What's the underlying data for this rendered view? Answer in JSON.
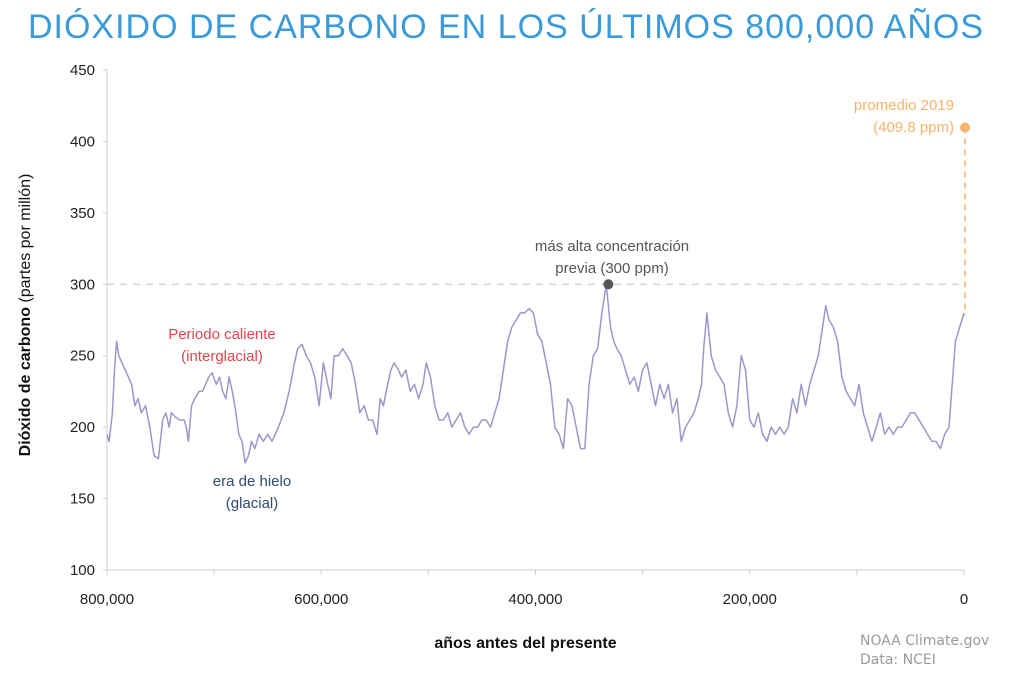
{
  "title": "DIÓXIDO DE CARBONO EN LOS ÚLTIMOS 800,000 AÑOS",
  "credit": {
    "line1": "NOAA Climate.gov",
    "line2": "Data: NCEI"
  },
  "colors": {
    "title": "#3b9ad9",
    "series": "#9a98cb",
    "warm": "#e0444e",
    "glacial": "#2f4a74",
    "highlight": "#555555",
    "current": "#f5b46b",
    "reference_line": "#cccccc"
  },
  "chart_data": {
    "type": "line",
    "title": "DIÓXIDO DE CARBONO EN LOS ÚLTIMOS 800,000 AÑOS",
    "xlabel": "años antes del presente",
    "ylabel": {
      "bold": "Dióxido de carbono",
      "normal": "(partes por millón)"
    },
    "xlim": [
      800000,
      0
    ],
    "ylim": [
      100,
      450
    ],
    "x_ticks": [
      {
        "value": 800000,
        "label": "800,000"
      },
      {
        "value": 600000,
        "label": "600,000"
      },
      {
        "value": 400000,
        "label": "400,000"
      },
      {
        "value": 200000,
        "label": "200,000"
      },
      {
        "value": 0,
        "label": "0"
      }
    ],
    "y_ticks": [
      100,
      150,
      200,
      250,
      300,
      350,
      400,
      450
    ],
    "grid": false,
    "reference_line": {
      "y": 300
    },
    "series": [
      {
        "x": [
          800000,
          798000,
          795000,
          793000,
          791000,
          789000,
          786000,
          783000,
          780000,
          777000,
          774000,
          771000,
          768000,
          764000,
          760000,
          756000,
          752000,
          748000,
          745000,
          742000,
          740000,
          736000,
          732000,
          728000,
          726000,
          724000,
          721000,
          718000,
          714000,
          711000,
          708000,
          705000,
          702000,
          698000,
          695000,
          692000,
          689000,
          686000,
          683000,
          680000,
          677000,
          674000,
          671000,
          668000,
          665000,
          662000,
          658000,
          654000,
          650000,
          646000,
          640000,
          635000,
          630000,
          625000,
          622000,
          618000,
          614000,
          610000,
          606000,
          602000,
          598000,
          594000,
          591000,
          588000,
          584000,
          580000,
          576000,
          572000,
          568000,
          564000,
          560000,
          556000,
          552000,
          548000,
          545000,
          542000,
          538000,
          535000,
          532000,
          528000,
          525000,
          521000,
          517000,
          513000,
          509000,
          505000,
          502000,
          498000,
          494000,
          490000,
          486000,
          482000,
          478000,
          474000,
          470000,
          466000,
          462000,
          458000,
          454000,
          450000,
          446000,
          442000,
          438000,
          434000,
          430000,
          426000,
          422000,
          418000,
          414000,
          410000,
          406000,
          402000,
          398000,
          394000,
          390000,
          386000,
          382000,
          378000,
          374000,
          370000,
          366000,
          362000,
          358000,
          354000,
          350000,
          346000,
          342000,
          338000,
          334000,
          330000,
          327000,
          324000,
          320000,
          316000,
          312000,
          308000,
          304000,
          300000,
          296000,
          292000,
          288000,
          284000,
          280000,
          276000,
          272000,
          268000,
          264000,
          260000,
          256000,
          252000,
          248000,
          245000,
          243000,
          240000,
          236000,
          232000,
          228000,
          224000,
          220000,
          216000,
          212000,
          208000,
          204000,
          200000,
          196000,
          192000,
          188000,
          184000,
          180000,
          176000,
          172000,
          168000,
          164000,
          160000,
          156000,
          152000,
          148000,
          144000,
          140000,
          136000,
          132000,
          129000,
          126000,
          122000,
          118000,
          114000,
          110000,
          106000,
          102000,
          98000,
          94000,
          90000,
          86000,
          82000,
          78000,
          74000,
          70000,
          66000,
          62000,
          58000,
          54000,
          50000,
          46000,
          42000,
          38000,
          34000,
          30000,
          26000,
          22000,
          18000,
          14000,
          12000,
          10000,
          8000,
          6000,
          4000,
          2000,
          0
        ],
        "values": [
          195,
          190,
          210,
          240,
          260,
          250,
          245,
          240,
          235,
          230,
          215,
          220,
          210,
          215,
          200,
          180,
          178,
          205,
          210,
          200,
          210,
          207,
          205,
          205,
          200,
          190,
          215,
          220,
          225,
          225,
          230,
          235,
          238,
          230,
          235,
          225,
          220,
          235,
          225,
          212,
          195,
          190,
          175,
          180,
          190,
          185,
          195,
          190,
          195,
          190,
          200,
          210,
          225,
          245,
          255,
          258,
          250,
          245,
          235,
          215,
          245,
          230,
          220,
          250,
          250,
          255,
          250,
          245,
          230,
          210,
          215,
          205,
          205,
          195,
          220,
          215,
          230,
          240,
          245,
          240,
          235,
          240,
          225,
          230,
          220,
          230,
          245,
          235,
          215,
          205,
          205,
          210,
          200,
          205,
          210,
          200,
          195,
          200,
          200,
          205,
          205,
          200,
          210,
          220,
          240,
          260,
          270,
          275,
          280,
          280,
          283,
          280,
          265,
          260,
          245,
          230,
          200,
          195,
          185,
          220,
          215,
          200,
          185,
          185,
          230,
          250,
          255,
          280,
          300,
          270,
          260,
          255,
          250,
          240,
          230,
          235,
          225,
          240,
          245,
          230,
          215,
          230,
          220,
          230,
          210,
          220,
          190,
          200,
          205,
          210,
          220,
          230,
          255,
          280,
          250,
          240,
          235,
          230,
          210,
          200,
          215,
          250,
          240,
          205,
          200,
          210,
          195,
          190,
          200,
          195,
          200,
          195,
          200,
          220,
          210,
          230,
          215,
          230,
          240,
          250,
          270,
          285,
          275,
          270,
          260,
          235,
          225,
          220,
          215,
          230,
          210,
          200,
          190,
          200,
          210,
          195,
          200,
          195,
          200,
          200,
          205,
          210,
          210,
          205,
          200,
          195,
          190,
          190,
          185,
          195,
          200,
          220,
          240,
          260,
          265,
          270,
          275,
          280
        ]
      }
    ],
    "annotations": [
      {
        "id": "warm",
        "text_lines": [
          "Periodo caliente",
          "(interglacial)"
        ]
      },
      {
        "id": "glacial",
        "text_lines": [
          "era de hielo",
          "(glacial)"
        ]
      },
      {
        "id": "previous_high",
        "text_lines": [
          "más alta concentración",
          "previa (300 ppm)"
        ],
        "x": 332000,
        "y": 300
      },
      {
        "id": "current",
        "text_lines": [
          "promedio 2019",
          "(409.8 ppm)"
        ],
        "x": 0,
        "y": 409.8
      }
    ]
  }
}
